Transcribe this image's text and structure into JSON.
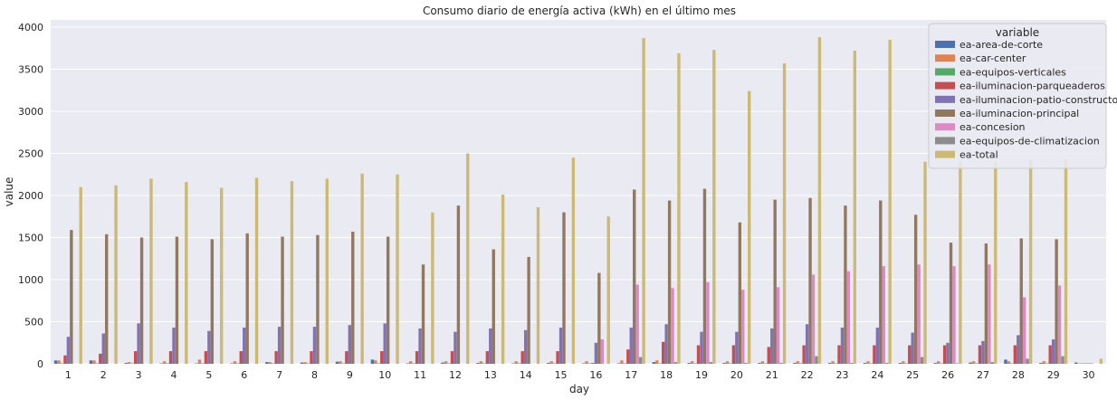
{
  "chart_data": {
    "type": "bar",
    "title": "Consumo diario de energía activa (kWh) en el último mes",
    "xlabel": "day",
    "ylabel": "value",
    "ylim": [
      0,
      4000
    ],
    "yticks": [
      0,
      500,
      1000,
      1500,
      2000,
      2500,
      3000,
      3500,
      4000
    ],
    "grid": true,
    "legend_title": "variable",
    "legend_position": "top-right",
    "categories": [
      "1",
      "2",
      "3",
      "4",
      "5",
      "6",
      "7",
      "8",
      "9",
      "10",
      "11",
      "12",
      "13",
      "14",
      "15",
      "16",
      "17",
      "18",
      "19",
      "20",
      "21",
      "22",
      "23",
      "24",
      "25",
      "26",
      "27",
      "28",
      "29",
      "30"
    ],
    "series": [
      {
        "name": "ea-area-de-corte",
        "color": "#4c72b0",
        "values": [
          40,
          40,
          10,
          5,
          5,
          5,
          20,
          15,
          25,
          50,
          5,
          15,
          10,
          5,
          10,
          5,
          5,
          20,
          10,
          10,
          10,
          10,
          10,
          10,
          10,
          10,
          15,
          50,
          10,
          15
        ]
      },
      {
        "name": "ea-car-center",
        "color": "#dd8452",
        "values": [
          40,
          40,
          20,
          30,
          50,
          30,
          20,
          20,
          30,
          40,
          30,
          30,
          30,
          30,
          30,
          30,
          40,
          40,
          30,
          30,
          30,
          30,
          30,
          30,
          30,
          30,
          30,
          30,
          30,
          5
        ]
      },
      {
        "name": "ea-equipos-verticales",
        "color": "#55a868",
        "values": [
          5,
          5,
          5,
          5,
          5,
          5,
          5,
          5,
          5,
          5,
          5,
          5,
          5,
          5,
          5,
          5,
          5,
          5,
          5,
          5,
          5,
          5,
          5,
          5,
          5,
          5,
          5,
          5,
          5,
          5
        ]
      },
      {
        "name": "ea-iluminacion-parqueaderos",
        "color": "#c44e52",
        "values": [
          100,
          120,
          150,
          150,
          150,
          150,
          150,
          150,
          150,
          150,
          150,
          150,
          150,
          150,
          150,
          10,
          170,
          260,
          220,
          220,
          200,
          220,
          220,
          220,
          220,
          220,
          220,
          220,
          220,
          5
        ]
      },
      {
        "name": "ea-iluminacion-patio-constructor",
        "color": "#8172b3",
        "values": [
          320,
          360,
          480,
          430,
          390,
          430,
          440,
          440,
          460,
          480,
          420,
          380,
          420,
          400,
          430,
          250,
          430,
          470,
          380,
          380,
          420,
          470,
          430,
          430,
          370,
          250,
          270,
          340,
          290,
          5
        ]
      },
      {
        "name": "ea-iluminacion-principal",
        "color": "#937860",
        "values": [
          1590,
          1540,
          1500,
          1510,
          1480,
          1550,
          1510,
          1530,
          1570,
          1510,
          1180,
          1880,
          1360,
          1270,
          1800,
          1080,
          2070,
          1940,
          2080,
          1680,
          1950,
          1970,
          1880,
          1940,
          1770,
          1440,
          1430,
          1490,
          1480,
          5
        ]
      },
      {
        "name": "ea-concesion",
        "color": "#da8bc3",
        "values": [
          0,
          0,
          0,
          0,
          0,
          0,
          0,
          0,
          0,
          0,
          0,
          0,
          0,
          0,
          0,
          290,
          940,
          900,
          970,
          880,
          910,
          1060,
          1100,
          1160,
          1180,
          1160,
          1180,
          790,
          930,
          0
        ]
      },
      {
        "name": "ea-equipos-de-climatizacion",
        "color": "#8c8c8c",
        "values": [
          0,
          0,
          0,
          0,
          0,
          0,
          0,
          0,
          0,
          0,
          0,
          0,
          0,
          0,
          0,
          0,
          80,
          20,
          20,
          10,
          10,
          90,
          10,
          10,
          80,
          5,
          20,
          60,
          90,
          0
        ]
      },
      {
        "name": "ea-total",
        "color": "#ccb974",
        "values": [
          2100,
          2120,
          2200,
          2160,
          2090,
          2210,
          2170,
          2200,
          2260,
          2250,
          1800,
          2500,
          2010,
          1860,
          2450,
          1750,
          3870,
          3690,
          3730,
          3240,
          3570,
          3880,
          3720,
          3850,
          2400,
          2400,
          2400,
          2420,
          2430,
          60
        ]
      }
    ]
  }
}
